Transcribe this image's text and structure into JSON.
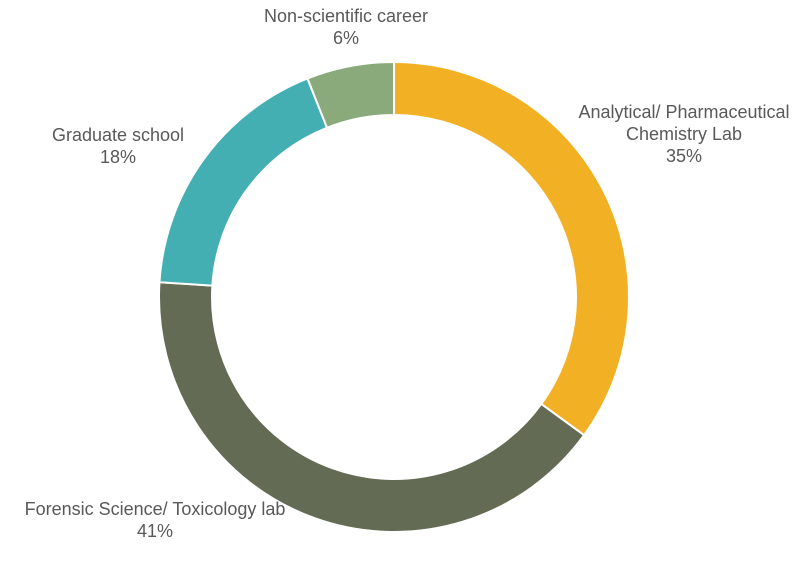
{
  "chart_data": {
    "type": "pie",
    "donut": true,
    "slices": [
      {
        "label_lines": [
          "Analytical/ Pharmaceutical",
          "Chemistry Lab"
        ],
        "value": 35,
        "value_label": "35%",
        "color": "#F2B124"
      },
      {
        "label_lines": [
          "Forensic Science/ Toxicology lab"
        ],
        "value": 41,
        "value_label": "41%",
        "color": "#636B55"
      },
      {
        "label_lines": [
          "Graduate school"
        ],
        "value": 18,
        "value_label": "18%",
        "color": "#43AFB2"
      },
      {
        "label_lines": [
          "Non-scientific career"
        ],
        "value": 6,
        "value_label": "6%",
        "color": "#8BAA7B"
      }
    ]
  }
}
